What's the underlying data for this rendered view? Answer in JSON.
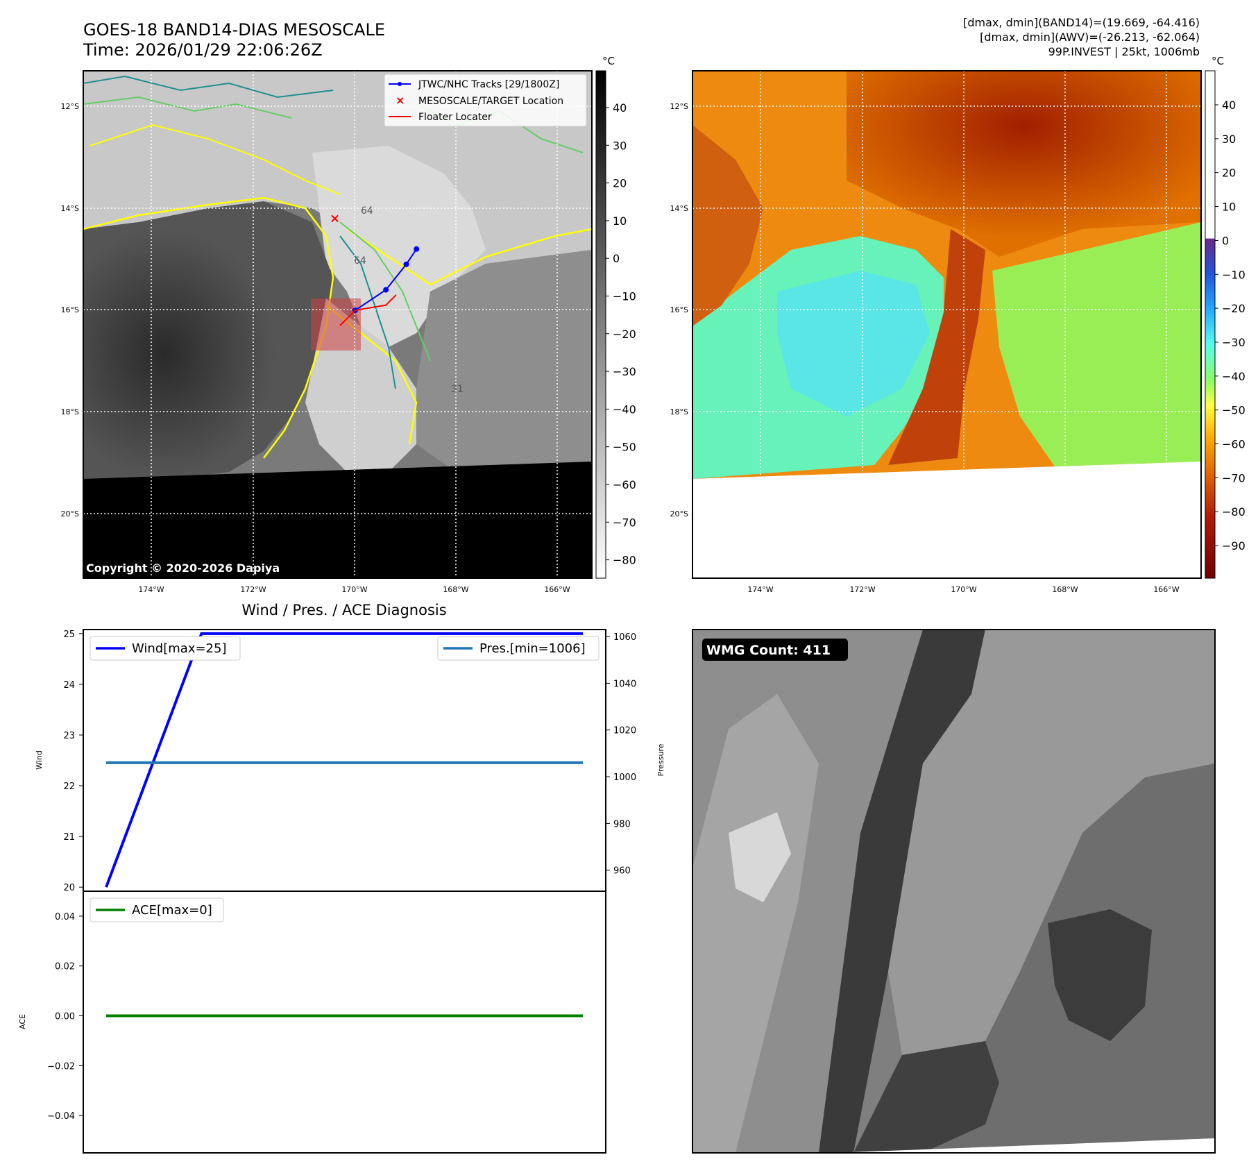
{
  "header": {
    "title": "GOES-18 BAND14-DIAS MESOSCALE",
    "time": "Time: 2026/01/29 22:06:26Z",
    "stats": [
      "[dmax, dmin](BAND14)=(19.669, -64.416)",
      "[dmax, dmin](AWV)=(-26.213, -62.064)",
      "99P.INVEST | 25kt, 1006mb"
    ]
  },
  "colors": {
    "track": "#0000ff",
    "target": "#ff0000",
    "floater": "#ff0000",
    "wind": "#0000ff",
    "pressure": "#1f77b4",
    "ace": "#008000",
    "contour_yellow": "#ffff00",
    "contour_green": "#66cc66",
    "contour_teal": "#1f8f8f"
  },
  "map_ir": {
    "unit": "°C",
    "copyright": "Copyright © 2020-2026 Dapiya",
    "lat_labels": [
      "12°S",
      "14°S",
      "16°S",
      "18°S",
      "20°S"
    ],
    "lon_labels": [
      "174°W",
      "172°W",
      "170°W",
      "168°W",
      "166°W"
    ],
    "colorbar_ticks": [
      "40",
      "30",
      "20",
      "10",
      "0",
      "−10",
      "−20",
      "−30",
      "−40",
      "−50",
      "−60",
      "−70",
      "−80"
    ],
    "legend": [
      {
        "label": "JTWC/NHC Tracks [29/1800Z]",
        "icon": "line-with-dot-icon"
      },
      {
        "label": "MESOSCALE/TARGET Location",
        "icon": "x-marker-icon"
      },
      {
        "label": "Floater Locater",
        "icon": "line-icon"
      }
    ],
    "contour_labels": [
      "64",
      "64",
      "31"
    ]
  },
  "map_awv": {
    "unit": "°C",
    "lat_labels": [
      "12°S",
      "14°S",
      "16°S",
      "18°S",
      "20°S"
    ],
    "lon_labels": [
      "174°W",
      "172°W",
      "170°W",
      "168°W",
      "166°W"
    ],
    "colorbar_ticks": [
      "40",
      "30",
      "20",
      "10",
      "0",
      "−10",
      "−20",
      "−30",
      "−40",
      "−50",
      "−60",
      "−70",
      "−80",
      "−90"
    ]
  },
  "diag": {
    "title": "Wind / Pres. / ACE Diagnosis",
    "wind_ylabel": "Wind",
    "pres_ylabel": "Pressure",
    "ace_ylabel": "ACE",
    "wind_legend": "Wind[max=25]",
    "pres_legend": "Pres.[min=1006]",
    "ace_legend": "ACE[max=0]",
    "wind_ticks": [
      "25",
      "24",
      "23",
      "22",
      "21",
      "20"
    ],
    "pres_ticks": [
      "1060",
      "1040",
      "1020",
      "1000",
      "980",
      "960"
    ],
    "ace_ticks": [
      "0.04",
      "0.02",
      "0.00",
      "−0.02",
      "−0.04"
    ]
  },
  "wmg": {
    "label": "WMG Count: 411"
  },
  "chart_data": [
    {
      "type": "line",
      "title": "Wind / Pres. / ACE Diagnosis",
      "x": [
        0,
        1,
        2,
        3,
        4,
        5
      ],
      "series": [
        {
          "name": "Wind[max=25]",
          "axis": "Wind",
          "values": [
            20,
            25,
            25,
            25,
            25,
            25
          ]
        },
        {
          "name": "Pres.[min=1006]",
          "axis": "Pressure",
          "values": [
            1006,
            1006,
            1006,
            1006,
            1006,
            1006
          ]
        }
      ],
      "ylabel": "Wind",
      "ylim": [
        19.92,
        25.08
      ],
      "y2label": "Pressure",
      "y2lim": [
        951,
        1063
      ],
      "legend": "top"
    },
    {
      "type": "line",
      "x": [
        0,
        1,
        2,
        3,
        4,
        5
      ],
      "series": [
        {
          "name": "ACE[max=0]",
          "values": [
            0,
            0,
            0,
            0,
            0,
            0
          ]
        }
      ],
      "ylabel": "ACE",
      "ylim": [
        -0.055,
        0.05
      ],
      "legend": "top-left"
    },
    {
      "type": "line",
      "title": "JTWC/NHC Tracks [29/1800Z]",
      "x": [
        -168.8,
        -169.0,
        -169.4,
        -170.0
      ],
      "y": [
        -14.8,
        -15.1,
        -15.6,
        -16.0
      ],
      "target": {
        "lon": -170.4,
        "lat": -14.2
      },
      "floater": {
        "lon": [
          -169.2,
          -169.4,
          -170.0,
          -170.3
        ],
        "lat": [
          -15.7,
          -15.9,
          -16.0,
          -16.3
        ]
      }
    }
  ]
}
